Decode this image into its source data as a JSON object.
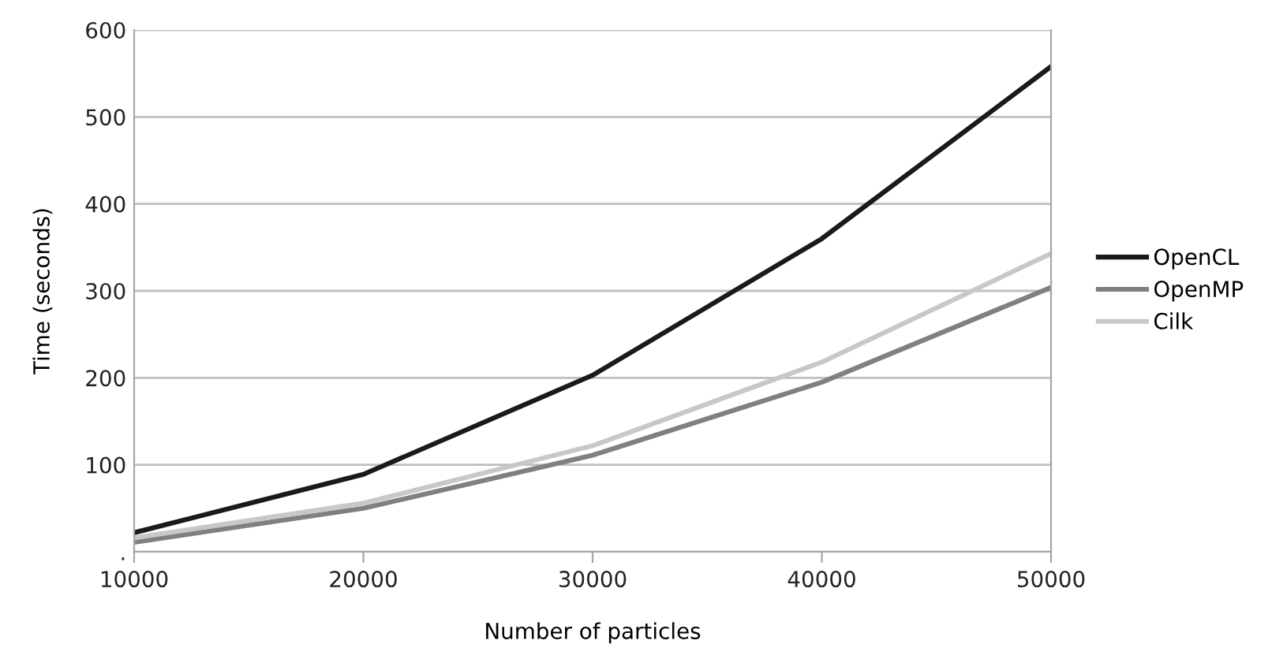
{
  "chart_data": {
    "type": "line",
    "xlabel": "Number of particles",
    "ylabel": "Time (seconds)",
    "x": [
      10000,
      20000,
      30000,
      40000,
      50000
    ],
    "series": [
      {
        "name": "OpenCL",
        "color": "#1a1a1a",
        "values": [
          22,
          89,
          203,
          360,
          558
        ]
      },
      {
        "name": "OpenMP",
        "color": "#808080",
        "values": [
          11,
          50,
          111,
          195,
          304
        ]
      },
      {
        "name": "Cilk",
        "color": "#c8c8c8",
        "values": [
          16,
          56,
          122,
          218,
          343
        ]
      }
    ],
    "xlim": [
      10000,
      50000
    ],
    "xticks": [
      10000,
      20000,
      30000,
      40000,
      50000
    ],
    "ylim": [
      0,
      600
    ],
    "yticks": [
      {
        "value": 0,
        "label": "."
      },
      100,
      200,
      300,
      400,
      500,
      600
    ],
    "grid": "y",
    "legend": "right",
    "marker": "none",
    "line_style": "solid"
  }
}
